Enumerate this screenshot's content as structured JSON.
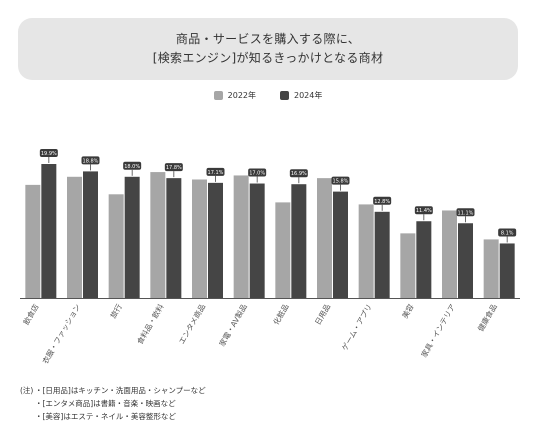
{
  "title": {
    "line1": "商品・サービスを購入する際に、",
    "line2": "[検索エンジン]が知るきっかけとなる商材"
  },
  "colors": {
    "y2022": "#a6a6a6",
    "y2024": "#454545",
    "axis": "#555555",
    "text": "#555555"
  },
  "chart_data": {
    "type": "bar",
    "title": "商品・サービスを購入する際に、[検索エンジン]が知るきっかけとなる商材",
    "categories": [
      "飲食店",
      "衣服・ファッション",
      "旅行",
      "食料品・飲料",
      "エンタメ商品",
      "家電・AV製品",
      "化粧品",
      "日用品",
      "ゲーム・アプリ",
      "美容",
      "家具・インテリア",
      "健康食品"
    ],
    "series": [
      {
        "name": "2022年",
        "values": [
          16.8,
          18.0,
          15.4,
          18.7,
          17.6,
          18.2,
          14.2,
          17.8,
          13.9,
          9.6,
          13.0,
          8.7
        ]
      },
      {
        "name": "2024年",
        "values": [
          19.9,
          18.8,
          18.0,
          17.8,
          17.1,
          17.0,
          16.9,
          15.8,
          12.8,
          11.4,
          11.1,
          8.1
        ]
      }
    ],
    "data_labels": [
      "19.9%",
      "18.8%",
      "18.0%",
      "17.8%",
      "17.1%",
      "17.0%",
      "16.9%",
      "15.8%",
      "12.8%",
      "11.4%",
      "11.1%",
      "8.1%"
    ],
    "ylim": [
      0,
      23
    ],
    "legend": "top-center",
    "grid": false
  },
  "notes": {
    "prefix": "(注)",
    "lines": [
      "・[日用品]はキッチン・洗面用品・シャンプーなど",
      "・[エンタメ商品]は書籍・音楽・映画など",
      "・[美容]はエステ・ネイル・美容整形など"
    ]
  }
}
